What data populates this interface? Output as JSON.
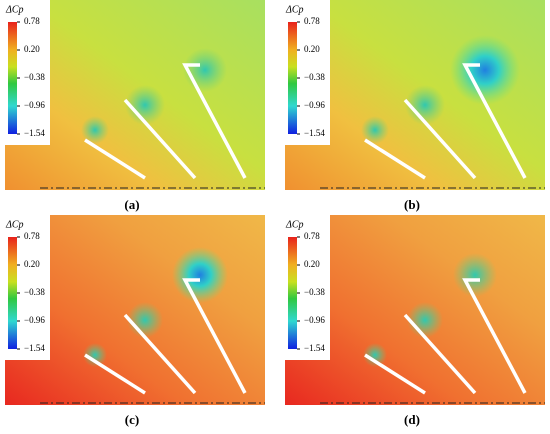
{
  "panels": [
    {
      "caption": "(a)",
      "colorbar": {
        "title": "ΔCp",
        "ticks": [
          0.78,
          {
            "value": 0.2,
            "label": "0.20"
          },
          {
            "value": -0.38,
            "label": "−0.38"
          },
          {
            "value": -0.96,
            "label": "−0.96"
          },
          {
            "value": -1.54,
            "label": "−1.54"
          }
        ]
      }
    },
    {
      "caption": "(b)",
      "colorbar": {
        "title": "ΔCp",
        "ticks": [
          0.78,
          {
            "value": 0.2,
            "label": "0.20"
          },
          {
            "value": -0.38,
            "label": "−0.38"
          },
          {
            "value": -0.96,
            "label": "−0.96"
          },
          {
            "value": -1.54,
            "label": "−1.54"
          }
        ]
      }
    },
    {
      "caption": "(c)",
      "colorbar": {
        "title": "ΔCp",
        "ticks": [
          0.78,
          {
            "value": 0.2,
            "label": "0.20"
          },
          {
            "value": -0.38,
            "label": "−0.38"
          },
          {
            "value": -0.96,
            "label": "−0.96"
          },
          {
            "value": -1.54,
            "label": "−1.54"
          }
        ]
      }
    },
    {
      "caption": "(d)",
      "colorbar": {
        "title": "ΔCp",
        "ticks": [
          0.78,
          {
            "value": 0.2,
            "label": "0.20"
          },
          {
            "value": -0.38,
            "label": "−0.38"
          },
          {
            "value": -0.96,
            "label": "−0.96"
          },
          {
            "value": -1.54,
            "label": "−1.54"
          }
        ]
      }
    }
  ]
}
